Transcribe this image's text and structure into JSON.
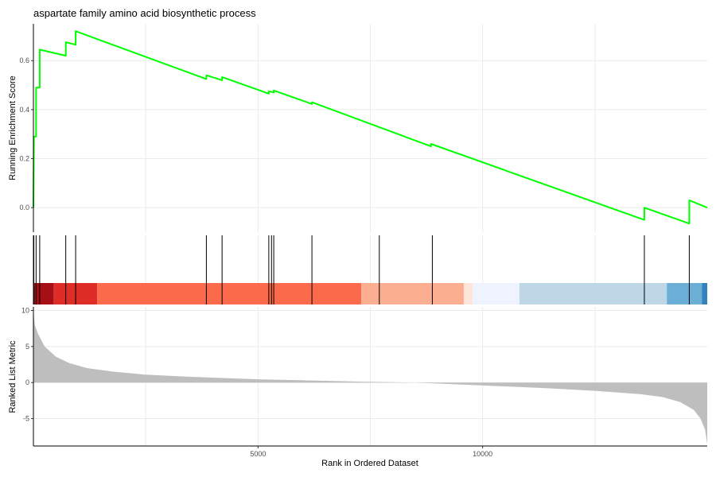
{
  "chart_data": {
    "type": "line",
    "title": "aspartate family amino acid biosynthetic process",
    "xlabel": "Rank in Ordered Dataset",
    "x_range": [
      0,
      15000
    ],
    "x_ticks": [
      5000,
      10000
    ],
    "x_grid": [
      2500,
      5000,
      7500,
      10000,
      12500
    ],
    "grid": true,
    "legend": "none",
    "running_score": {
      "ylabel": "Running Enrichment Score",
      "color": "#00ff00",
      "y_range": [
        -0.1,
        0.75
      ],
      "y_ticks": [
        0.0,
        0.2,
        0.4,
        0.6
      ],
      "points": [
        {
          "x": 0,
          "y": 0.0
        },
        {
          "x": 10,
          "y": 0.29
        },
        {
          "x": 60,
          "y": 0.29
        },
        {
          "x": 60,
          "y": 0.49
        },
        {
          "x": 140,
          "y": 0.49
        },
        {
          "x": 140,
          "y": 0.645
        },
        {
          "x": 720,
          "y": 0.62
        },
        {
          "x": 720,
          "y": 0.675
        },
        {
          "x": 940,
          "y": 0.665
        },
        {
          "x": 940,
          "y": 0.72
        },
        {
          "x": 3850,
          "y": 0.525
        },
        {
          "x": 3850,
          "y": 0.54
        },
        {
          "x": 4200,
          "y": 0.52
        },
        {
          "x": 4200,
          "y": 0.533
        },
        {
          "x": 5240,
          "y": 0.465
        },
        {
          "x": 5240,
          "y": 0.475
        },
        {
          "x": 5350,
          "y": 0.47
        },
        {
          "x": 5350,
          "y": 0.478
        },
        {
          "x": 6200,
          "y": 0.423
        },
        {
          "x": 6200,
          "y": 0.43
        },
        {
          "x": 8850,
          "y": 0.25
        },
        {
          "x": 8850,
          "y": 0.26
        },
        {
          "x": 13600,
          "y": -0.05
        },
        {
          "x": 13600,
          "y": 0.0
        },
        {
          "x": 14600,
          "y": -0.065
        },
        {
          "x": 14600,
          "y": 0.03
        },
        {
          "x": 15000,
          "y": 0.0
        }
      ]
    },
    "gene_hits": [
      10,
      60,
      140,
      720,
      940,
      3850,
      4200,
      5240,
      5300,
      5350,
      6200,
      7700,
      8880,
      13600,
      14600
    ],
    "rank_colorbar": [
      {
        "from": 0,
        "to": 450,
        "color": "#a50f15"
      },
      {
        "from": 450,
        "to": 1420,
        "color": "#de2d26"
      },
      {
        "from": 1420,
        "to": 7300,
        "color": "#fb6a4a"
      },
      {
        "from": 7300,
        "to": 9580,
        "color": "#fcae91"
      },
      {
        "from": 9580,
        "to": 9780,
        "color": "#fee5d9"
      },
      {
        "from": 9780,
        "to": 10820,
        "color": "#eff3ff"
      },
      {
        "from": 10820,
        "to": 14100,
        "color": "#bdd7e7"
      },
      {
        "from": 14100,
        "to": 14880,
        "color": "#6baed6"
      },
      {
        "from": 14880,
        "to": 15000,
        "color": "#3182bd"
      }
    ],
    "ranked_metric": {
      "ylabel": "Ranked List Metric",
      "fill_color": "#bebebe",
      "y_range": [
        -8.8,
        10.5
      ],
      "y_ticks": [
        -5,
        0,
        5,
        10
      ],
      "y_tick_labels": [
        "-5",
        "0",
        "5",
        "10"
      ],
      "points": [
        {
          "x": 0,
          "y": 10.0
        },
        {
          "x": 30,
          "y": 8.0
        },
        {
          "x": 100,
          "y": 6.8
        },
        {
          "x": 250,
          "y": 5.0
        },
        {
          "x": 500,
          "y": 3.6
        },
        {
          "x": 800,
          "y": 2.7
        },
        {
          "x": 1200,
          "y": 2.0
        },
        {
          "x": 1800,
          "y": 1.5
        },
        {
          "x": 2500,
          "y": 1.1
        },
        {
          "x": 3500,
          "y": 0.8
        },
        {
          "x": 5000,
          "y": 0.45
        },
        {
          "x": 6500,
          "y": 0.25
        },
        {
          "x": 7500,
          "y": 0.1
        },
        {
          "x": 7400,
          "y": 0.1
        },
        {
          "x": 8500,
          "y": 0.0
        },
        {
          "x": 10000,
          "y": -0.4
        },
        {
          "x": 11500,
          "y": -0.8
        },
        {
          "x": 12500,
          "y": -1.15
        },
        {
          "x": 13500,
          "y": -1.6
        },
        {
          "x": 14000,
          "y": -2.0
        },
        {
          "x": 14400,
          "y": -2.7
        },
        {
          "x": 14700,
          "y": -3.8
        },
        {
          "x": 14850,
          "y": -5.0
        },
        {
          "x": 14950,
          "y": -6.5
        },
        {
          "x": 15000,
          "y": -8.5
        }
      ]
    }
  }
}
